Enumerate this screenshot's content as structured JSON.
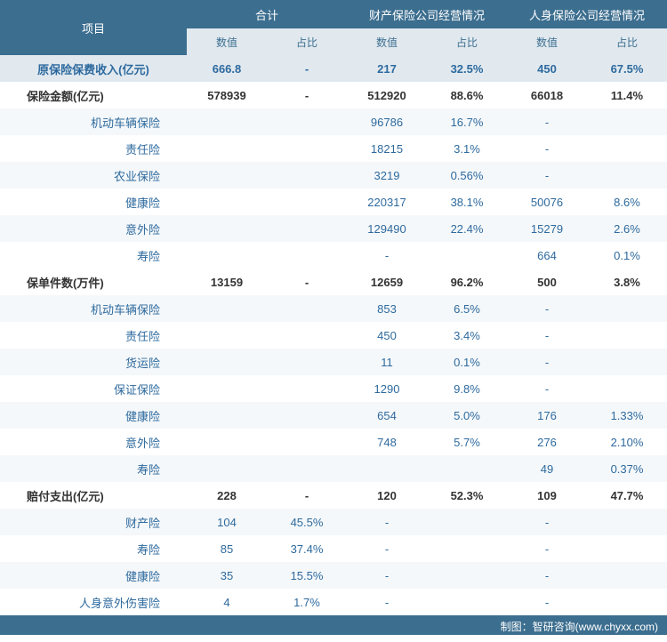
{
  "header": {
    "item": "项目",
    "groups": [
      "合计",
      "财产保险公司经营情况",
      "人身保险公司经营情况"
    ],
    "sub": [
      "数值",
      "占比"
    ]
  },
  "rows": [
    {
      "type": "highlight",
      "label": "原保险保费收入(亿元)",
      "v": [
        "666.8",
        "-",
        "217",
        "32.5%",
        "450",
        "67.5%"
      ]
    },
    {
      "type": "bold",
      "label": "保险金额(亿元)",
      "v": [
        "578939",
        "-",
        "512920",
        "88.6%",
        "66018",
        "11.4%"
      ]
    },
    {
      "type": "sub",
      "label": "机动车辆保险",
      "v": [
        "",
        "",
        "96786",
        "16.7%",
        "-",
        ""
      ]
    },
    {
      "type": "sub",
      "alt": true,
      "label": "责任险",
      "v": [
        "",
        "",
        "18215",
        "3.1%",
        "-",
        ""
      ]
    },
    {
      "type": "sub",
      "label": "农业保险",
      "v": [
        "",
        "",
        "3219",
        "0.56%",
        "-",
        ""
      ]
    },
    {
      "type": "sub",
      "alt": true,
      "label": "健康险",
      "v": [
        "",
        "",
        "220317",
        "38.1%",
        "50076",
        "8.6%"
      ]
    },
    {
      "type": "sub",
      "label": "意外险",
      "v": [
        "",
        "",
        "129490",
        "22.4%",
        "15279",
        "2.6%"
      ]
    },
    {
      "type": "sub",
      "alt": true,
      "label": "寿险",
      "v": [
        "",
        "",
        "-",
        "",
        "664",
        "0.1%"
      ]
    },
    {
      "type": "bold",
      "label": "保单件数(万件)",
      "v": [
        "13159",
        "-",
        "12659",
        "96.2%",
        "500",
        "3.8%"
      ]
    },
    {
      "type": "sub",
      "label": "机动车辆保险",
      "v": [
        "",
        "",
        "853",
        "6.5%",
        "-",
        ""
      ]
    },
    {
      "type": "sub",
      "alt": true,
      "label": "责任险",
      "v": [
        "",
        "",
        "450",
        "3.4%",
        "-",
        ""
      ]
    },
    {
      "type": "sub",
      "label": "货运险",
      "v": [
        "",
        "",
        "11",
        "0.1%",
        "-",
        ""
      ]
    },
    {
      "type": "sub",
      "alt": true,
      "label": "保证保险",
      "v": [
        "",
        "",
        "1290",
        "9.8%",
        "-",
        ""
      ]
    },
    {
      "type": "sub",
      "label": "健康险",
      "v": [
        "",
        "",
        "654",
        "5.0%",
        "176",
        "1.33%"
      ]
    },
    {
      "type": "sub",
      "alt": true,
      "label": "意外险",
      "v": [
        "",
        "",
        "748",
        "5.7%",
        "276",
        "2.10%"
      ]
    },
    {
      "type": "sub",
      "label": "寿险",
      "v": [
        "",
        "",
        "",
        "",
        "49",
        "0.37%"
      ]
    },
    {
      "type": "bold",
      "label": "赔付支出(亿元)",
      "v": [
        "228",
        "-",
        "120",
        "52.3%",
        "109",
        "47.7%"
      ]
    },
    {
      "type": "sub",
      "label": "财产险",
      "v": [
        "104",
        "45.5%",
        "-",
        "",
        "-",
        ""
      ]
    },
    {
      "type": "sub",
      "alt": true,
      "label": "寿险",
      "v": [
        "85",
        "37.4%",
        "-",
        "",
        "-",
        ""
      ]
    },
    {
      "type": "sub",
      "label": "健康险",
      "v": [
        "35",
        "15.5%",
        "-",
        "",
        "-",
        ""
      ]
    },
    {
      "type": "sub",
      "alt": true,
      "label": "人身意外伤害险",
      "v": [
        "4",
        "1.7%",
        "-",
        "",
        "-",
        ""
      ]
    }
  ],
  "footer": "制图：智研咨询(www.chyxx.com)"
}
